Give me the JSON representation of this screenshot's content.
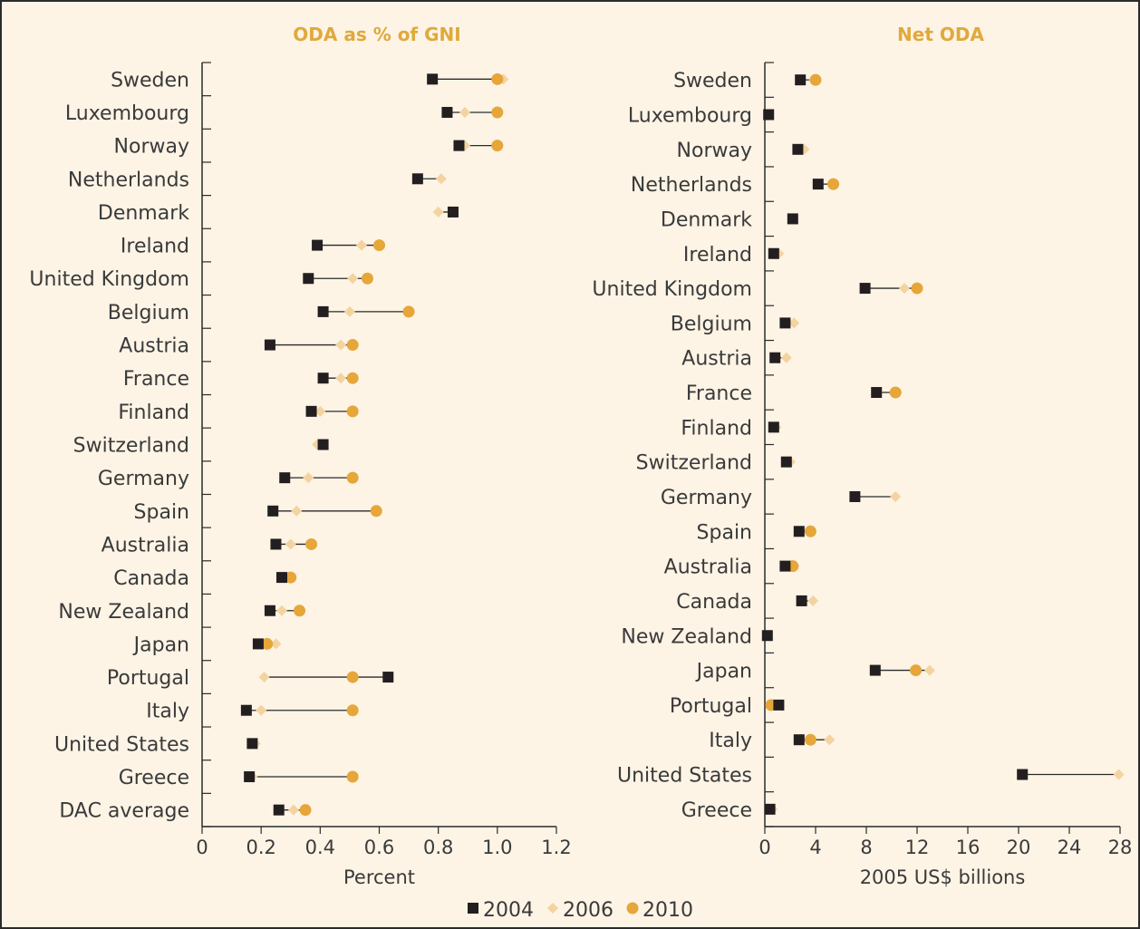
{
  "legend": {
    "items": [
      {
        "label": "2004",
        "color": "#231f20",
        "shape": "square"
      },
      {
        "label": "2006",
        "color": "#f3d3a0",
        "shape": "diamond"
      },
      {
        "label": "2010",
        "color": "#e6a63a",
        "shape": "circle"
      }
    ]
  },
  "chart_data": [
    {
      "type": "dot",
      "title": "ODA as % of GNI",
      "xlabel": "Percent",
      "xlim": [
        0,
        1.2
      ],
      "xticks": [
        "0",
        "0.2",
        "0.4",
        "0.6",
        "0.8",
        "1.0",
        "1.2"
      ],
      "xtick_values": [
        0,
        0.2,
        0.4,
        0.6,
        0.8,
        1.0,
        1.2
      ],
      "categories": [
        "Sweden",
        "Luxembourg",
        "Norway",
        "Netherlands",
        "Denmark",
        "Ireland",
        "United Kingdom",
        "Belgium",
        "Austria",
        "France",
        "Finland",
        "Switzerland",
        "Germany",
        "Spain",
        "Australia",
        "Canada",
        "New Zealand",
        "Japan",
        "Portugal",
        "Italy",
        "United States",
        "Greece",
        "DAC average"
      ],
      "series": [
        {
          "name": "2004",
          "values": [
            0.78,
            0.83,
            0.87,
            0.73,
            0.85,
            0.39,
            0.36,
            0.41,
            0.23,
            0.41,
            0.37,
            0.41,
            0.28,
            0.24,
            0.25,
            0.27,
            0.23,
            0.19,
            0.63,
            0.15,
            0.17,
            0.16,
            0.26
          ]
        },
        {
          "name": "2006",
          "values": [
            1.02,
            0.89,
            0.89,
            0.81,
            0.8,
            0.54,
            0.51,
            0.5,
            0.47,
            0.47,
            0.4,
            0.39,
            0.36,
            0.32,
            0.3,
            0.29,
            0.27,
            0.25,
            0.21,
            0.2,
            0.18,
            0.17,
            0.31
          ]
        },
        {
          "name": "2010",
          "values": [
            1.0,
            1.0,
            1.0,
            null,
            null,
            0.6,
            0.56,
            0.7,
            0.51,
            0.51,
            0.51,
            null,
            0.51,
            0.59,
            0.37,
            0.3,
            0.33,
            0.22,
            0.51,
            0.51,
            null,
            0.51,
            0.35
          ]
        }
      ]
    },
    {
      "type": "dot",
      "title": "Net ODA",
      "xlabel": "2005 US$ billions",
      "xlim": [
        0,
        28
      ],
      "xticks": [
        "0",
        "4",
        "8",
        "12",
        "16",
        "20",
        "24",
        "28"
      ],
      "xtick_values": [
        0,
        4,
        8,
        12,
        16,
        20,
        24,
        28
      ],
      "categories": [
        "Sweden",
        "Luxembourg",
        "Norway",
        "Netherlands",
        "Denmark",
        "Ireland",
        "United Kingdom",
        "Belgium",
        "Austria",
        "France",
        "Finland",
        "Switzerland",
        "Germany",
        "Spain",
        "Australia",
        "Canada",
        "New Zealand",
        "Japan",
        "Portugal",
        "Italy",
        "United States",
        "Greece"
      ],
      "series": [
        {
          "name": "2004",
          "values": [
            2.8,
            0.3,
            2.6,
            4.2,
            2.2,
            0.7,
            7.9,
            1.6,
            0.8,
            8.8,
            0.7,
            1.7,
            7.1,
            2.7,
            1.6,
            2.9,
            0.2,
            8.7,
            1.1,
            2.7,
            20.3,
            0.4
          ]
        },
        {
          "name": "2006",
          "values": [
            3.9,
            null,
            3.1,
            5.4,
            null,
            1.1,
            11.0,
            2.3,
            1.7,
            10.4,
            0.9,
            2.0,
            10.3,
            3.6,
            2.3,
            3.8,
            null,
            13.0,
            0.5,
            5.1,
            27.9,
            0.6
          ]
        },
        {
          "name": "2010",
          "values": [
            4.0,
            null,
            null,
            5.4,
            null,
            null,
            12.0,
            null,
            null,
            10.3,
            null,
            null,
            null,
            3.6,
            2.2,
            null,
            null,
            11.9,
            0.5,
            3.6,
            null,
            null
          ]
        }
      ]
    }
  ]
}
